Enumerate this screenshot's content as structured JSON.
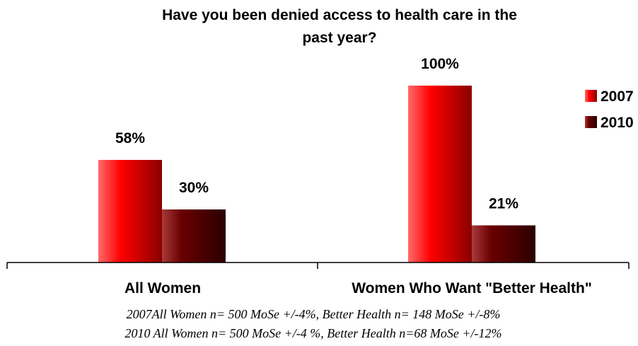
{
  "chart_data": {
    "type": "bar",
    "title": "Have you been denied access to health care in the past year?",
    "title_lines": [
      "Have you been denied access to health care in the",
      "past year?"
    ],
    "categories": [
      "All Women",
      "Women Who Want \"Better Health\""
    ],
    "series": [
      {
        "name": "2007",
        "values": [
          58,
          100
        ],
        "labels": [
          "58%",
          "100%"
        ],
        "color": "#e00000"
      },
      {
        "name": "2010",
        "values": [
          30,
          21
        ],
        "labels": [
          "30%",
          "21%"
        ],
        "color": "#6a0000"
      }
    ],
    "ylim": [
      0,
      100
    ],
    "grid": false,
    "legend_position": "right",
    "xlabel": "",
    "ylabel": ""
  },
  "notes": [
    "2007All Women n= 500 MoSe +/-4%, Better Health n= 148 MoSe +/-8%",
    "2010 All Women n= 500 MoSe +/-4 %, Better Health n=68 MoSe +/-12%"
  ]
}
